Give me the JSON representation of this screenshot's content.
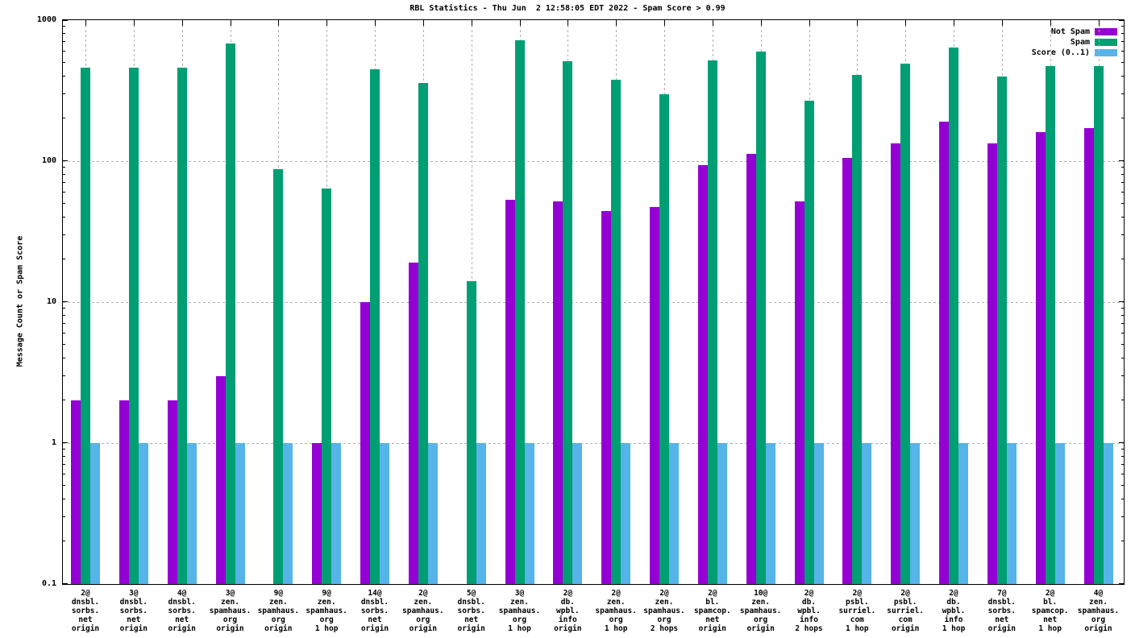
{
  "title": "RBL Statistics - Thu Jun  2 12:58:05 EDT 2022 - Spam Score > 0.99",
  "ylabel": "Message Count or Spam Score",
  "colors": {
    "not_spam": "#9400d3",
    "spam": "#009e73",
    "score": "#56b4e9",
    "grid": "#b0b0b0"
  },
  "legend": [
    {
      "label": "Not Spam",
      "color": "#9400d3"
    },
    {
      "label": "Spam",
      "color": "#009e73"
    },
    {
      "label": "Score (0..1)",
      "color": "#56b4e9"
    }
  ],
  "chart_data": {
    "type": "bar",
    "title": "RBL Statistics - Thu Jun  2 12:58:05 EDT 2022 - Spam Score > 0.99",
    "xlabel": "",
    "ylabel": "Message Count or Spam Score",
    "yscale": "log",
    "ylim": [
      0.1,
      1000
    ],
    "yticks": [
      0.1,
      1,
      10,
      100,
      1000
    ],
    "grid": true,
    "legend_position": "top-right",
    "categories": [
      [
        "2@",
        "dnsbl.",
        "sorbs.",
        "net",
        "origin"
      ],
      [
        "3@",
        "dnsbl.",
        "sorbs.",
        "net",
        "origin"
      ],
      [
        "4@",
        "dnsbl.",
        "sorbs.",
        "net",
        "origin"
      ],
      [
        "3@",
        "zen.",
        "spamhaus.",
        "org",
        "origin"
      ],
      [
        "9@",
        "zen.",
        "spamhaus.",
        "org",
        "origin"
      ],
      [
        "9@",
        "zen.",
        "spamhaus.",
        "org",
        "1 hop"
      ],
      [
        "14@",
        "dnsbl.",
        "sorbs.",
        "net",
        "origin"
      ],
      [
        "2@",
        "zen.",
        "spamhaus.",
        "org",
        "origin"
      ],
      [
        "5@",
        "dnsbl.",
        "sorbs.",
        "net",
        "origin"
      ],
      [
        "3@",
        "zen.",
        "spamhaus.",
        "org",
        "1 hop"
      ],
      [
        "2@",
        "db.",
        "wpbl.",
        "info",
        "origin"
      ],
      [
        "2@",
        "zen.",
        "spamhaus.",
        "org",
        "1 hop"
      ],
      [
        "2@",
        "zen.",
        "spamhaus.",
        "org",
        "2 hops"
      ],
      [
        "2@",
        "bl.",
        "spamcop.",
        "net",
        "origin"
      ],
      [
        "10@",
        "zen.",
        "spamhaus.",
        "org",
        "origin"
      ],
      [
        "2@",
        "db.",
        "wpbl.",
        "info",
        "2 hops"
      ],
      [
        "2@",
        "psbl.",
        "surriel.",
        "com",
        "1 hop"
      ],
      [
        "2@",
        "psbl.",
        "surriel.",
        "com",
        "origin"
      ],
      [
        "2@",
        "db.",
        "wpbl.",
        "info",
        "1 hop"
      ],
      [
        "7@",
        "dnsbl.",
        "sorbs.",
        "net",
        "origin"
      ],
      [
        "2@",
        "bl.",
        "spamcop.",
        "net",
        "1 hop"
      ],
      [
        "4@",
        "zen.",
        "spamhaus.",
        "org",
        "origin"
      ]
    ],
    "series": [
      {
        "name": "Not Spam",
        "color": "#9400d3",
        "values": [
          2,
          2,
          2,
          3,
          null,
          1,
          10,
          19,
          null,
          53,
          52,
          44,
          47,
          94,
          112,
          52,
          105,
          134,
          191,
          134,
          161,
          171
        ]
      },
      {
        "name": "Spam",
        "color": "#009e73",
        "values": [
          460,
          460,
          460,
          680,
          88,
          64,
          450,
          360,
          14,
          720,
          510,
          380,
          300,
          520,
          600,
          270,
          410,
          490,
          640,
          400,
          470,
          470
        ]
      },
      {
        "name": "Score (0..1)",
        "color": "#56b4e9",
        "values": [
          1,
          1,
          1,
          1,
          1,
          1,
          1,
          1,
          1,
          1,
          1,
          1,
          1,
          1,
          1,
          1,
          1,
          1,
          1,
          1,
          1,
          1
        ]
      }
    ]
  }
}
